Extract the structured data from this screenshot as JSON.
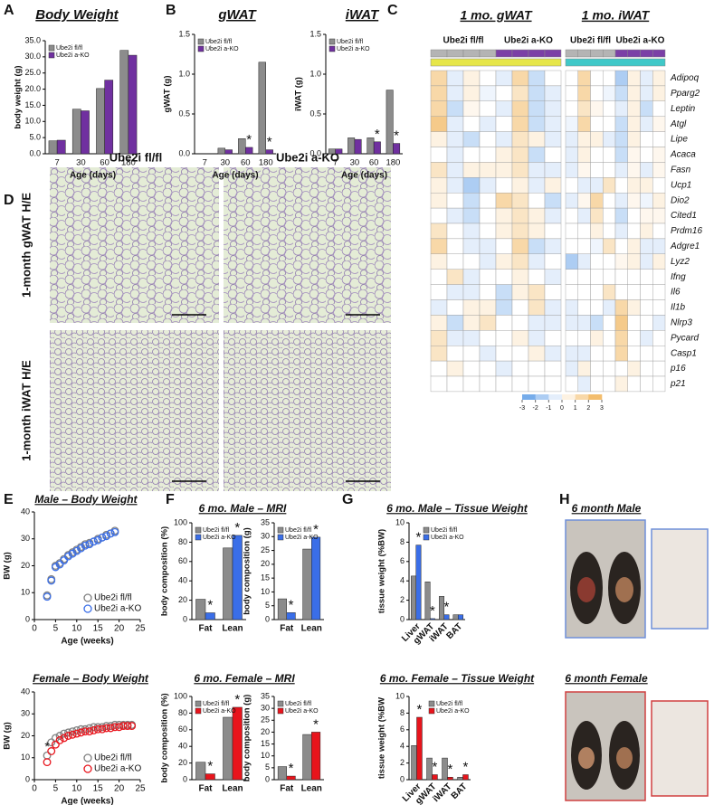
{
  "panel_labels": [
    "A",
    "B",
    "C",
    "D",
    "E",
    "F",
    "G",
    "H"
  ],
  "images": {
    "histology": {
      "columns": [
        "Ube2i fl/fl",
        "Ube2i a-KO"
      ],
      "rows": [
        "1-month gWAT H/E",
        "1-month iWAT H/E"
      ]
    },
    "photos": {
      "titles": [
        "6 month Male",
        "6 month Female"
      ]
    }
  },
  "chart_data": [
    {
      "type": "bar",
      "title": "Body Weight",
      "x_label": "Age (days)",
      "y_label": "body weight (g)",
      "categories": [
        "7",
        "30",
        "60",
        "180"
      ],
      "series": [
        {
          "name": "Ube2i fl/fl",
          "color": "#8c8c8c",
          "values": [
            4.0,
            13.8,
            20.2,
            32.0
          ]
        },
        {
          "name": "Ube2i a-KO",
          "color": "#7030a0",
          "values": [
            4.2,
            13.3,
            22.8,
            30.5
          ]
        }
      ],
      "ylim": [
        0,
        35
      ],
      "yticks": [
        {
          "value": 0,
          "label": "0.0"
        },
        {
          "value": 5,
          "label": "5.0"
        },
        {
          "value": 10,
          "label": "10.0"
        },
        {
          "value": 15,
          "label": "15.0"
        },
        {
          "value": 20,
          "label": "20.0"
        },
        {
          "value": 25,
          "label": "25.0"
        },
        {
          "value": 30,
          "label": "30.0"
        },
        {
          "value": 35,
          "label": "35.0"
        }
      ],
      "legend": "upper left",
      "annotations": []
    },
    {
      "type": "bar",
      "title": "gWAT",
      "x_label": "Age (days)",
      "y_label": "gWAT (g)",
      "categories": [
        "7",
        "30",
        "60",
        "180"
      ],
      "series": [
        {
          "name": "Ube2i fl/fl",
          "color": "#8c8c8c",
          "values": [
            0.0,
            0.07,
            0.19,
            1.15
          ]
        },
        {
          "name": "Ube2i a-KO",
          "color": "#7030a0",
          "values": [
            0.0,
            0.05,
            0.08,
            0.05
          ]
        }
      ],
      "ylim": [
        0,
        1.5
      ],
      "yticks": [
        {
          "value": 0,
          "label": "0.0"
        },
        {
          "value": 0.5,
          "label": "0.5"
        },
        {
          "value": 1,
          "label": "1.0"
        },
        {
          "value": 1.5,
          "label": "1.5"
        }
      ],
      "legend": "upper left",
      "annotations": [
        {
          "text": "*",
          "x": "60"
        },
        {
          "text": "*",
          "x": "180"
        }
      ]
    },
    {
      "type": "bar",
      "title": "iWAT",
      "x_label": "Age (days)",
      "y_label": "iWAT (g)",
      "categories": [
        "7",
        "30",
        "60",
        "180"
      ],
      "series": [
        {
          "name": "Ube2i fl/fl",
          "color": "#8c8c8c",
          "values": [
            0.06,
            0.2,
            0.2,
            0.8
          ]
        },
        {
          "name": "Ube2i a-KO",
          "color": "#7030a0",
          "values": [
            0.06,
            0.18,
            0.15,
            0.13
          ]
        }
      ],
      "ylim": [
        0,
        1.5
      ],
      "yticks": [
        {
          "value": 0,
          "label": "0.0"
        },
        {
          "value": 0.5,
          "label": "0.5"
        },
        {
          "value": 1,
          "label": "1.0"
        },
        {
          "value": 1.5,
          "label": "1.5"
        }
      ],
      "legend": "upper left",
      "annotations": [
        {
          "text": "*",
          "x": "60"
        },
        {
          "text": "*",
          "x": "180"
        }
      ]
    },
    {
      "type": "heatmap",
      "panels": [
        {
          "title": "1 mo. gWAT",
          "color": "#e6e64a"
        },
        {
          "title": "1 mo. iWAT",
          "color": "#40c8c8"
        }
      ],
      "groups": [
        {
          "name": "Ube2i fl/fl",
          "color": "#b4b4b4"
        },
        {
          "name": "Ube2i a-KO",
          "color": "#7b3fa6"
        }
      ],
      "rows": [
        "Adipoq",
        "Pparg2",
        "Leptin",
        "Atgl",
        "Lipe",
        "Acaca",
        "Fasn",
        "Ucp1",
        "Dio2",
        "Cited1",
        "Prdm16",
        "Adgre1",
        "Lyz2",
        "Ifng",
        "Il6",
        "Il1b",
        "Nlrp3",
        "Pycard",
        "Casp1",
        "p16",
        "p21"
      ],
      "values": [
        [
          1.5,
          -0.5,
          0.5,
          0,
          -0.5,
          1.5,
          -1,
          0,
          0,
          1.5,
          0,
          0,
          -1.5,
          0.5,
          -0.5,
          0.5
        ],
        [
          1.5,
          -0.5,
          0.5,
          -0.3,
          0,
          1,
          -1,
          -0.5,
          0,
          1.5,
          0,
          -0.3,
          -1,
          0.5,
          -0.5,
          0.5
        ],
        [
          1.5,
          -1,
          0.3,
          0,
          -0.5,
          1.5,
          -1,
          -0.5,
          0,
          1,
          0.3,
          0,
          -0.5,
          0.5,
          -1,
          0
        ],
        [
          2,
          -0.5,
          0,
          -0.5,
          0,
          1.5,
          -1,
          -0.5,
          -0.3,
          1.5,
          0,
          0,
          -1,
          0.5,
          -0.5,
          0.3
        ],
        [
          0.5,
          -0.5,
          -1,
          0,
          -0.5,
          1,
          0.5,
          -0.5,
          -0.5,
          0.5,
          0.5,
          -0.5,
          -1,
          0.5,
          0,
          0
        ],
        [
          0,
          -0.5,
          0,
          0,
          0.5,
          1,
          -1,
          0,
          -0.5,
          0.5,
          0,
          0,
          -1,
          0.3,
          0,
          0.3
        ],
        [
          1,
          -0.5,
          0.5,
          0.5,
          0.5,
          1,
          -0.5,
          -0.5,
          -0.5,
          0.3,
          0,
          0,
          -0.5,
          0.3,
          -0.5,
          0.3
        ],
        [
          0.5,
          -0.5,
          -1.5,
          -0.5,
          0,
          0.5,
          -0.5,
          0.5,
          0,
          -0.5,
          -0.5,
          1,
          0,
          0.5,
          0.5,
          0
        ],
        [
          0.5,
          0,
          -1,
          0,
          1.5,
          1,
          0,
          -1,
          -0.5,
          0.3,
          1.5,
          0,
          -0.5,
          0.3,
          -0.3,
          0.5
        ],
        [
          0,
          -0.5,
          -1,
          0,
          0.5,
          1,
          0.5,
          -0.5,
          0,
          -0.5,
          1,
          0,
          -1,
          0,
          0.3,
          0.3
        ],
        [
          1,
          0,
          -0.5,
          0,
          0.5,
          1,
          0.5,
          0,
          0,
          0,
          0.5,
          0,
          -0.5,
          0,
          0.5,
          0
        ],
        [
          1.5,
          0,
          -0.5,
          -0.5,
          0,
          1.5,
          -1,
          -0.5,
          0,
          0,
          -0.3,
          1,
          0,
          0.5,
          -0.5,
          -0.5
        ],
        [
          0.5,
          0,
          0,
          -0.5,
          0.5,
          1,
          -0.5,
          0,
          -1.5,
          -0.5,
          0,
          0,
          0.3,
          0.5,
          -0.5,
          0.5
        ],
        [
          0,
          1,
          -0.5,
          0,
          0,
          0.5,
          0,
          -0.5,
          0,
          0,
          0,
          0,
          0,
          0,
          0,
          0
        ],
        [
          0,
          -0.5,
          -0.5,
          0,
          -1,
          0.5,
          1,
          0,
          0,
          0,
          0,
          1,
          0,
          0,
          0,
          0
        ],
        [
          -0.5,
          0,
          0.5,
          0.5,
          -1,
          0,
          1,
          -0.5,
          -0.5,
          0,
          0,
          -0.5,
          1.5,
          0.5,
          0,
          0
        ],
        [
          0.5,
          -1,
          0.5,
          1,
          0,
          0,
          -0.5,
          -0.5,
          -0.5,
          -0.5,
          -1,
          0,
          2,
          0,
          0,
          -0.5
        ],
        [
          1,
          -0.5,
          -0.5,
          0,
          0,
          0.5,
          -0.5,
          0,
          0,
          0,
          0.5,
          0,
          1.5,
          0,
          -0.5,
          0
        ],
        [
          1,
          0,
          0,
          -0.5,
          0,
          0,
          0.5,
          -0.5,
          -0.5,
          -0.5,
          0,
          0,
          1.5,
          0,
          0,
          0
        ],
        [
          0,
          0.5,
          0,
          0,
          -0.5,
          0,
          0,
          0,
          -0.5,
          0.5,
          0,
          0,
          0,
          0.5,
          0,
          0
        ],
        [
          0,
          0,
          0,
          0,
          0,
          0,
          0,
          0,
          0,
          -0.5,
          0,
          0,
          0.5,
          0,
          0,
          0
        ]
      ],
      "vlim": [
        -3,
        3
      ],
      "colorbar_ticks": [
        -3,
        -2,
        -1,
        0,
        1,
        2,
        3
      ],
      "colors": [
        "#5b9be6",
        "#ffffff",
        "#f0b050"
      ]
    },
    {
      "type": "scatter",
      "title": "Male – Body Weight",
      "x_label": "Age (weeks)",
      "y_label": "BW (g)",
      "x": [
        3,
        4,
        5,
        6,
        7,
        8,
        9,
        10,
        11,
        12,
        13,
        14,
        15,
        16,
        17,
        18,
        19
      ],
      "series": [
        {
          "name": "Ube2i fl/fl",
          "color": "#808080",
          "values": [
            9,
            15,
            20,
            21,
            22.5,
            24,
            25,
            26,
            27,
            28,
            28.5,
            29,
            30,
            30.5,
            31.5,
            32,
            33
          ]
        },
        {
          "name": "Ube2i a-KO",
          "color": "#3a6ee8",
          "values": [
            8.5,
            14.5,
            19.5,
            20.5,
            22,
            23.5,
            24.5,
            25.5,
            26.5,
            27.5,
            28,
            29,
            29.5,
            30.5,
            31,
            32,
            32.5
          ]
        }
      ],
      "xlim": [
        0,
        25
      ],
      "xticks": [
        0,
        5,
        10,
        15,
        20,
        25
      ],
      "ylim": [
        0,
        40
      ],
      "yticks": [
        0,
        10,
        20,
        30,
        40
      ],
      "legend": "lower right",
      "annotations": []
    },
    {
      "type": "scatter",
      "title": "Female – Body Weight",
      "x_label": "Age (weeks)",
      "y_label": "BW (g)",
      "x": [
        3,
        4,
        5,
        6,
        7,
        8,
        9,
        10,
        11,
        12,
        13,
        14,
        15,
        16,
        17,
        18,
        19,
        20,
        21,
        22,
        23
      ],
      "series": [
        {
          "name": "Ube2i fl/fl",
          "color": "#808080",
          "values": [
            11,
            17,
            19,
            20,
            21,
            21.5,
            22,
            22.5,
            23,
            23,
            23.5,
            24,
            24,
            24,
            24.5,
            24.5,
            25,
            25,
            25,
            25,
            25
          ]
        },
        {
          "name": "Ube2i a-KO",
          "color": "#e8141c",
          "values": [
            8,
            13,
            16,
            18,
            19,
            20,
            20.5,
            21,
            21.5,
            22,
            22,
            22.5,
            23,
            23,
            23.5,
            23.5,
            24,
            24,
            24.5,
            24.5,
            24.5
          ]
        }
      ],
      "xlim": [
        0,
        25
      ],
      "xticks": [
        0,
        5,
        10,
        15,
        20,
        25
      ],
      "ylim": [
        0,
        40
      ],
      "yticks": [
        0,
        10,
        20,
        30,
        40
      ],
      "legend": "lower right",
      "annotations": [
        {
          "text": "*",
          "x": 3
        }
      ]
    },
    {
      "type": "bar",
      "title": "6 mo. Male – MRI",
      "y_label": "body composition (%)",
      "categories": [
        "Fat",
        "Lean"
      ],
      "series": [
        {
          "name": "Ube2i fl/fl",
          "color": "#8c8c8c",
          "values": [
            21,
            74
          ]
        },
        {
          "name": "Ube2i a-KO",
          "color": "#3a6ee8",
          "values": [
            7,
            87
          ]
        }
      ],
      "ylim": [
        0,
        100
      ],
      "yticks": [
        0,
        20,
        40,
        60,
        80,
        100
      ],
      "legend": "upper left",
      "annotations": [
        {
          "text": "*",
          "x": "Fat"
        },
        {
          "text": "*",
          "x": "Lean"
        }
      ]
    },
    {
      "type": "bar",
      "y_label": "body composition (g)",
      "categories": [
        "Fat",
        "Lean"
      ],
      "series": [
        {
          "name": "Ube2i fl/fl",
          "color": "#8c8c8c",
          "values": [
            7.5,
            25.5
          ]
        },
        {
          "name": "Ube2i a-KO",
          "color": "#3a6ee8",
          "values": [
            2.5,
            29.8
          ]
        }
      ],
      "ylim": [
        0,
        35
      ],
      "yticks": [
        0,
        5,
        10,
        15,
        20,
        25,
        30,
        35
      ],
      "legend": "upper left",
      "annotations": [
        {
          "text": "*",
          "x": "Fat"
        },
        {
          "text": "*",
          "x": "Lean"
        }
      ]
    },
    {
      "type": "bar",
      "title": "6 mo. Female – MRI",
      "y_label": "body composition (%)",
      "categories": [
        "Fat",
        "Lean"
      ],
      "series": [
        {
          "name": "Ube2i fl/fl",
          "color": "#8c8c8c",
          "values": [
            21,
            75
          ]
        },
        {
          "name": "Ube2i a-KO",
          "color": "#e8141c",
          "values": [
            7,
            87
          ]
        }
      ],
      "ylim": [
        0,
        100
      ],
      "yticks": [
        0,
        20,
        40,
        60,
        80,
        100
      ],
      "legend": "upper left",
      "annotations": [
        {
          "text": "*",
          "x": "Fat"
        },
        {
          "text": "*",
          "x": "Lean"
        }
      ]
    },
    {
      "type": "bar",
      "y_label": "body composition (g)",
      "categories": [
        "Fat",
        "Lean"
      ],
      "series": [
        {
          "name": "Ube2i fl/fl",
          "color": "#8c8c8c",
          "values": [
            5.5,
            19
          ]
        },
        {
          "name": "Ube2i a-KO",
          "color": "#e8141c",
          "values": [
            1.5,
            20
          ]
        }
      ],
      "ylim": [
        0,
        35
      ],
      "yticks": [
        0,
        5,
        10,
        15,
        20,
        25,
        30,
        35
      ],
      "legend": "upper left",
      "annotations": [
        {
          "text": "*",
          "x": "Fat"
        },
        {
          "text": "*",
          "x": "Lean"
        }
      ]
    },
    {
      "type": "bar",
      "title": "6 mo. Male – Tissue Weight",
      "y_label": "tissue weight (%BW)",
      "categories": [
        "Liver",
        "gWAT",
        "iWAT",
        "BAT"
      ],
      "series": [
        {
          "name": "Ube2i fl/fl",
          "color": "#8c8c8c",
          "values": [
            4.5,
            3.9,
            2.4,
            0.5
          ]
        },
        {
          "name": "Ube2i a-KO",
          "color": "#3a6ee8",
          "values": [
            7.7,
            0.1,
            0.5,
            0.5
          ]
        }
      ],
      "ylim": [
        0,
        10
      ],
      "yticks": [
        0,
        2,
        4,
        6,
        8,
        10
      ],
      "legend": "upper right",
      "annotations": [
        {
          "text": "*",
          "x": "Liver"
        },
        {
          "text": "*",
          "x": "gWAT"
        },
        {
          "text": "*",
          "x": "iWAT"
        }
      ]
    },
    {
      "type": "bar",
      "title": "6 mo. Female – Tissue Weight",
      "y_label": "tissue weight (%BW",
      "categories": [
        "Liver",
        "gWAT",
        "iWAT",
        "BAT"
      ],
      "series": [
        {
          "name": "Ube2i fl/fl",
          "color": "#8c8c8c",
          "values": [
            4.1,
            2.6,
            2.6,
            0.3
          ]
        },
        {
          "name": "Ube2i a-KO",
          "color": "#e8141c",
          "values": [
            7.5,
            0.6,
            0.3,
            0.6
          ]
        }
      ],
      "ylim": [
        0,
        10
      ],
      "yticks": [
        0,
        2,
        4,
        6,
        8,
        10
      ],
      "legend": "upper right",
      "annotations": [
        {
          "text": "*",
          "x": "Liver"
        },
        {
          "text": "*",
          "x": "gWAT"
        },
        {
          "text": "*",
          "x": "iWAT"
        },
        {
          "text": "*",
          "x": "BAT"
        }
      ]
    }
  ]
}
